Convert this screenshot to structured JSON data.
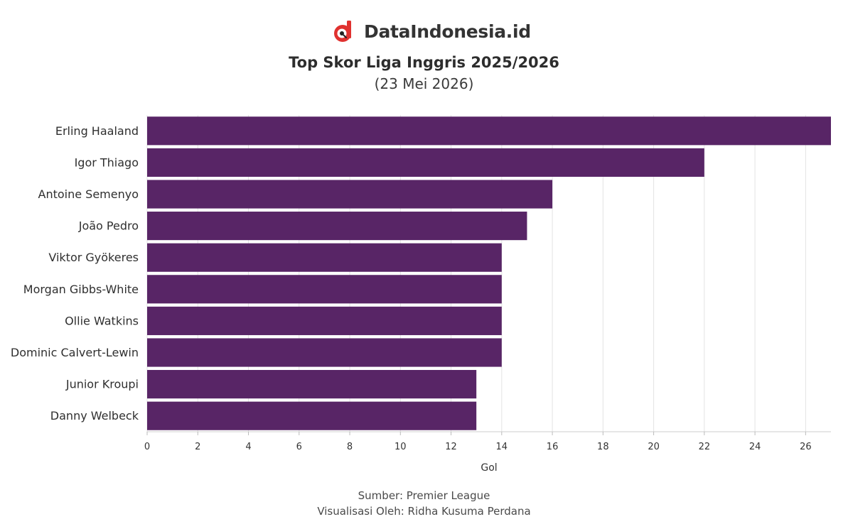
{
  "brand": {
    "name": "DataIndonesia.id",
    "logo_icon": "dataindonesia-logo-icon",
    "logo_color": "#e0312f"
  },
  "chart_data": {
    "type": "bar",
    "orientation": "horizontal",
    "title": "Top Skor Liga Inggris 2025/2026",
    "subtitle": "(23 Mei 2026)",
    "xlabel": "Gol",
    "ylabel": "",
    "categories": [
      "Erling Haaland",
      "Igor Thiago",
      "Antoine Semenyo",
      "João Pedro",
      "Viktor Gyökeres",
      "Morgan Gibbs-White",
      "Ollie Watkins",
      "Dominic Calvert-Lewin",
      "Junior Kroupi",
      "Danny Welbeck"
    ],
    "values": [
      27,
      22,
      16,
      15,
      14,
      14,
      14,
      14,
      13,
      13
    ],
    "xlim": [
      0,
      27
    ],
    "xticks": [
      0,
      2,
      4,
      6,
      8,
      10,
      12,
      14,
      16,
      18,
      20,
      22,
      24,
      26
    ],
    "grid": "vertical",
    "legend": "none",
    "bar_color": "#582566"
  },
  "footer": {
    "source": "Sumber: Premier League",
    "credit": "Visualisasi Oleh: Ridha Kusuma Perdana"
  }
}
